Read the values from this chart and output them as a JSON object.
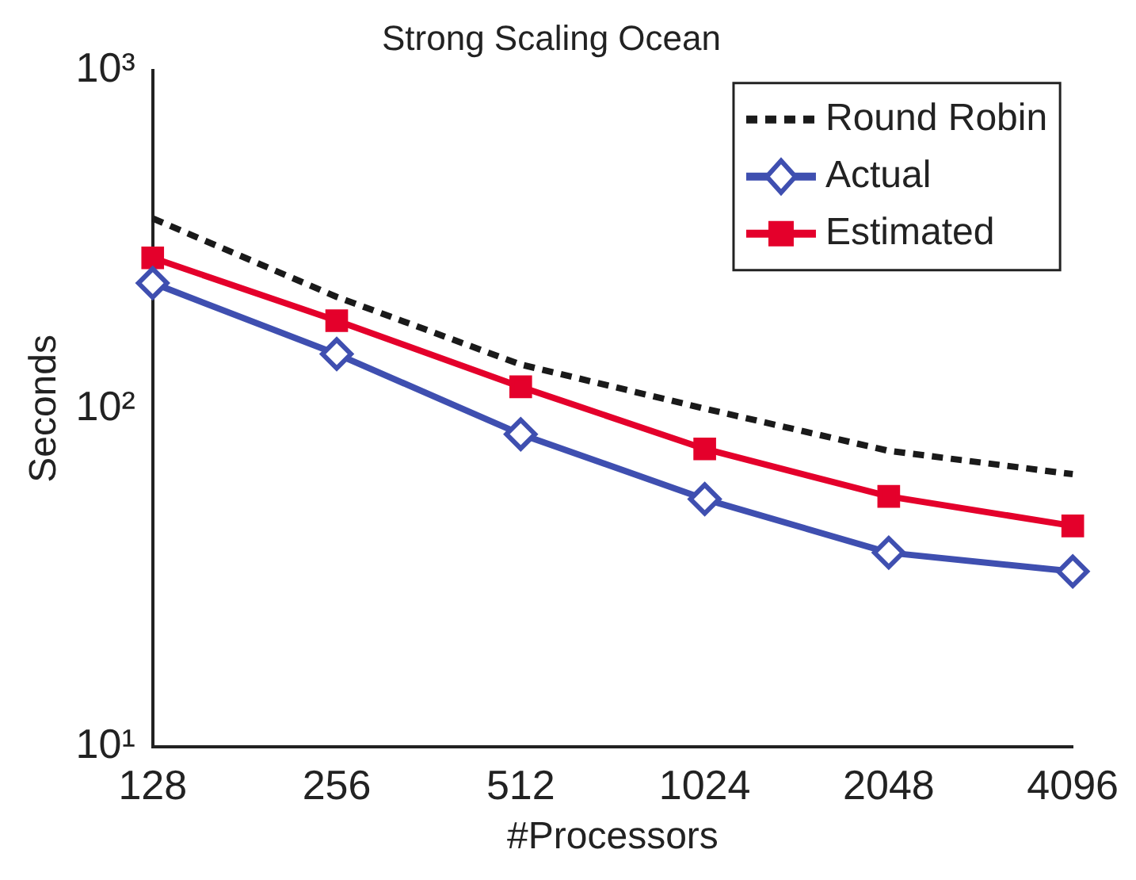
{
  "chart_data": {
    "type": "line",
    "title": "Strong Scaling Ocean",
    "xlabel": "#Processors",
    "ylabel": "Seconds",
    "categories": [
      "128",
      "256",
      "512",
      "1024",
      "2048",
      "4096"
    ],
    "series": [
      {
        "name": "Round Robin",
        "color": "#1a1a1a",
        "values": [
          365,
          214,
          135,
          100,
          75,
          64
        ],
        "marker": "none",
        "line_style": "dashed"
      },
      {
        "name": "Actual",
        "color": "#3f4fb0",
        "values": [
          235,
          145,
          84,
          54,
          37.5,
          33
        ],
        "marker": "diamond",
        "line_style": "solid"
      },
      {
        "name": "Estimated",
        "color": "#e4002b",
        "values": [
          279,
          182,
          116,
          76,
          55,
          45
        ],
        "marker": "square",
        "line_style": "solid"
      }
    ],
    "log": "y",
    "ylim": [
      10,
      1000
    ],
    "yticks": [
      {
        "value": 10,
        "label": "10¹"
      },
      {
        "value": 100,
        "label": "10²"
      },
      {
        "value": 1000,
        "label": "10³"
      }
    ],
    "legend": "top right",
    "grid": false
  }
}
